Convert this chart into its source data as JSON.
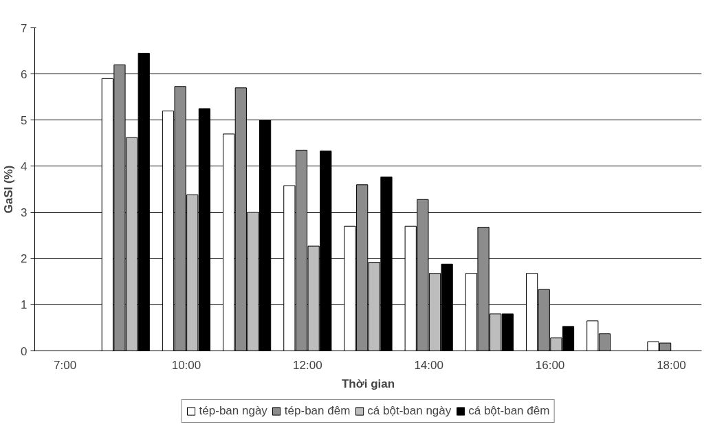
{
  "chart_data": {
    "type": "bar",
    "xlabel": "Thời gian",
    "ylabel": "GaSI (%)",
    "categories": [
      "7:00",
      null,
      "10:00",
      null,
      "12:00",
      null,
      "14:00",
      null,
      "16:00",
      null,
      "18:00"
    ],
    "series": [
      {
        "name": "tép-ban ngày",
        "color": "#ffffff",
        "values": [
          null,
          5.9,
          5.2,
          4.7,
          3.58,
          2.7,
          2.7,
          1.68,
          1.68,
          0.65,
          0.2
        ]
      },
      {
        "name": "tép-ban đêm",
        "color": "#8c8c8c",
        "values": [
          null,
          6.2,
          5.73,
          5.7,
          4.35,
          3.6,
          3.28,
          2.68,
          1.33,
          0.37,
          0.17
        ]
      },
      {
        "name": "cá bột-ban ngày",
        "color": "#bdbdbd",
        "values": [
          null,
          4.62,
          3.38,
          3.0,
          2.27,
          1.92,
          1.68,
          0.8,
          0.28,
          null,
          null
        ]
      },
      {
        "name": "cá bột-ban đêm",
        "color": "#000000",
        "values": [
          null,
          6.45,
          5.25,
          5.0,
          4.33,
          3.77,
          1.88,
          0.8,
          0.53,
          null,
          null
        ]
      }
    ],
    "ylim": [
      0,
      7
    ],
    "yticks": [
      0,
      1,
      2,
      3,
      4,
      5,
      6,
      7
    ],
    "grid": "y",
    "legend": "bottom"
  }
}
